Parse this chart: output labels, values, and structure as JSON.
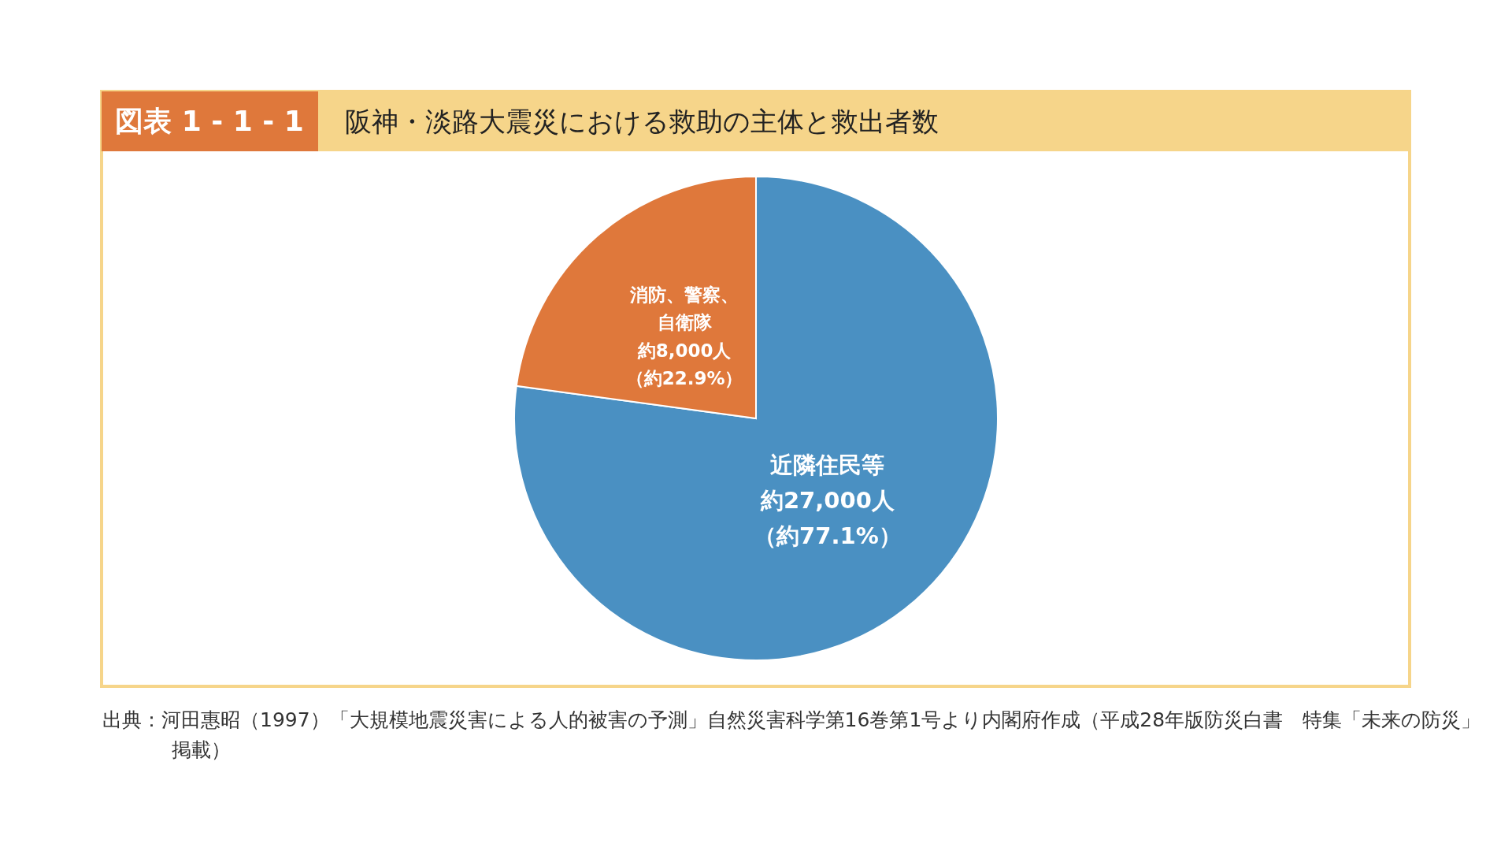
{
  "chart_data": {
    "type": "pie",
    "subtitle": "図表 1 - 1 - 1",
    "title": "阪神・淡路大震災における救助の主体と救出者数",
    "categories": [
      "近隣住民等",
      "消防、警察、自衛隊"
    ],
    "values": [
      27000,
      8000
    ],
    "colors": [
      "#4a90c2",
      "#df783b"
    ],
    "value_labels": [
      "約27,000人（約77.1%）",
      "約8,000人（約22.9%）"
    ],
    "annotations": [
      "出典：河田惠昭（1997）「大規模地震災害による人的被害の予測」自然災害科学第16巻第1号より内閣府作成（平成28年版防災白書　特集「未来の防災」掲載）"
    ]
  }
}
